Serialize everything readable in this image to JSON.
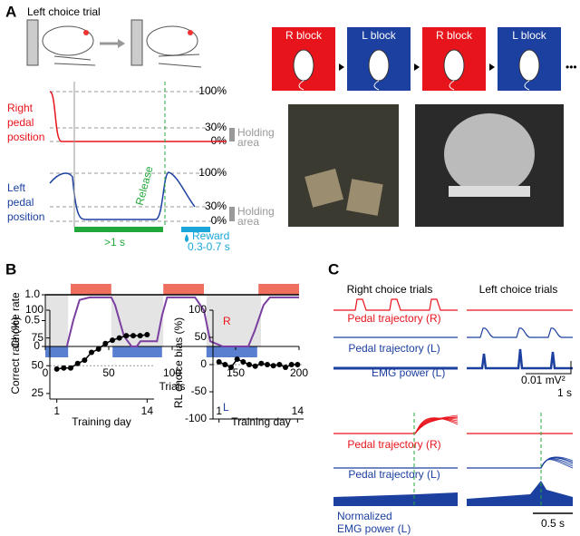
{
  "panel_a": {
    "label": "A",
    "title": "Left choice trial",
    "right_pedal": {
      "label": [
        "Right",
        "pedal",
        "position"
      ],
      "levels": [
        "100%",
        "30%",
        "0%"
      ],
      "holding": [
        "Holding",
        "area"
      ]
    },
    "left_pedal": {
      "label": [
        "Left",
        "pedal",
        "position"
      ],
      "levels": [
        "100%",
        "30%",
        "0%"
      ],
      "holding": [
        "Holding",
        "area"
      ],
      "release": "Release"
    },
    "hold_duration": ">1 s",
    "reward": [
      "Reward",
      "0.3-0.7 s"
    ],
    "blocks": [
      {
        "label": "R block",
        "color": "#e8141c"
      },
      {
        "label": "L block",
        "color": "#1c40a0"
      },
      {
        "label": "R block",
        "color": "#e8141c"
      },
      {
        "label": "L block",
        "color": "#1c40a0"
      }
    ],
    "ellipsis": "•••"
  },
  "panel_b": {
    "label": "B",
    "choice_chart": {
      "type": "line",
      "ylabel": "Choice rate",
      "xlabel": "Trials",
      "color": "#7a3fa0",
      "x": [
        17,
        22,
        27,
        35,
        45,
        52,
        55,
        62,
        68,
        72,
        75,
        88,
        92,
        96,
        118,
        125,
        130,
        140,
        160,
        165,
        172,
        177,
        200
      ],
      "values": [
        0,
        0.5,
        0.9,
        0.95,
        0.95,
        0.95,
        0.8,
        0.2,
        0,
        0,
        0.1,
        0.1,
        0.6,
        0.95,
        0.95,
        0.7,
        0.1,
        0,
        0,
        0.3,
        0.8,
        0.95,
        0.95
      ],
      "xlim": [
        0,
        200
      ],
      "ylim": [
        0,
        1
      ],
      "xticks": [
        0,
        50,
        100,
        150,
        200
      ],
      "yticks": [
        0,
        0.5,
        {
          "value": 1,
          "label": "1.0"
        }
      ],
      "shaded_blocks": [
        [
          0,
          18
        ],
        [
          52,
          93
        ],
        [
          127,
          170
        ]
      ],
      "right_choice_spans": [
        [
          20,
          52
        ],
        [
          93,
          125
        ],
        [
          168,
          200
        ]
      ],
      "left_choice_spans": [
        [
          0,
          18
        ],
        [
          53,
          92
        ],
        [
          127,
          167
        ]
      ]
    },
    "correct_chart": {
      "type": "line",
      "ylabel": "Correct rate (%)",
      "xlabel": "Training day",
      "color": "#000000",
      "x": [
        1,
        2,
        3,
        4,
        5,
        6,
        7,
        8,
        9,
        10,
        11,
        12,
        13,
        14
      ],
      "values": [
        47,
        48,
        48,
        52,
        55,
        62,
        65,
        70,
        73,
        75,
        77,
        77,
        77,
        78
      ],
      "chance": 50,
      "xlim": [
        0,
        15
      ],
      "ylim": [
        20,
        100
      ],
      "xticks": [
        1,
        14
      ],
      "yticks": [
        25,
        50,
        75,
        100
      ]
    },
    "bias_chart": {
      "type": "line",
      "ylabel": "RL choice bias (%)",
      "xlabel": "Training day",
      "color": "#000000",
      "x": [
        1,
        2,
        3,
        4,
        5,
        6,
        7,
        8,
        9,
        10,
        11,
        12,
        13,
        14
      ],
      "values": [
        5,
        0,
        -5,
        10,
        5,
        0,
        -3,
        2,
        0,
        -2,
        0,
        -5,
        0,
        0
      ],
      "xlim": [
        0,
        15
      ],
      "ylim": [
        -100,
        100
      ],
      "xticks": [
        1,
        14
      ],
      "yticks": [
        100,
        50,
        0,
        -50,
        -100
      ],
      "right_label": "R",
      "left_label": "L"
    }
  },
  "panel_c": {
    "label": "C",
    "columns": [
      "Right choice trials",
      "Left choice trials"
    ],
    "top": {
      "traces": [
        "Pedal trajectory (R)",
        "Pedal trajectory (L)",
        "EMG power (L)"
      ],
      "scale_y": "0.01 mV²",
      "scale_x": "1 s"
    },
    "bottom": {
      "traces": [
        "Pedal trajectory (R)",
        "Pedal trajectory (L)"
      ],
      "emg": [
        "Normalized",
        "EMG power (L)"
      ],
      "scale_x": "0.5 s"
    }
  }
}
